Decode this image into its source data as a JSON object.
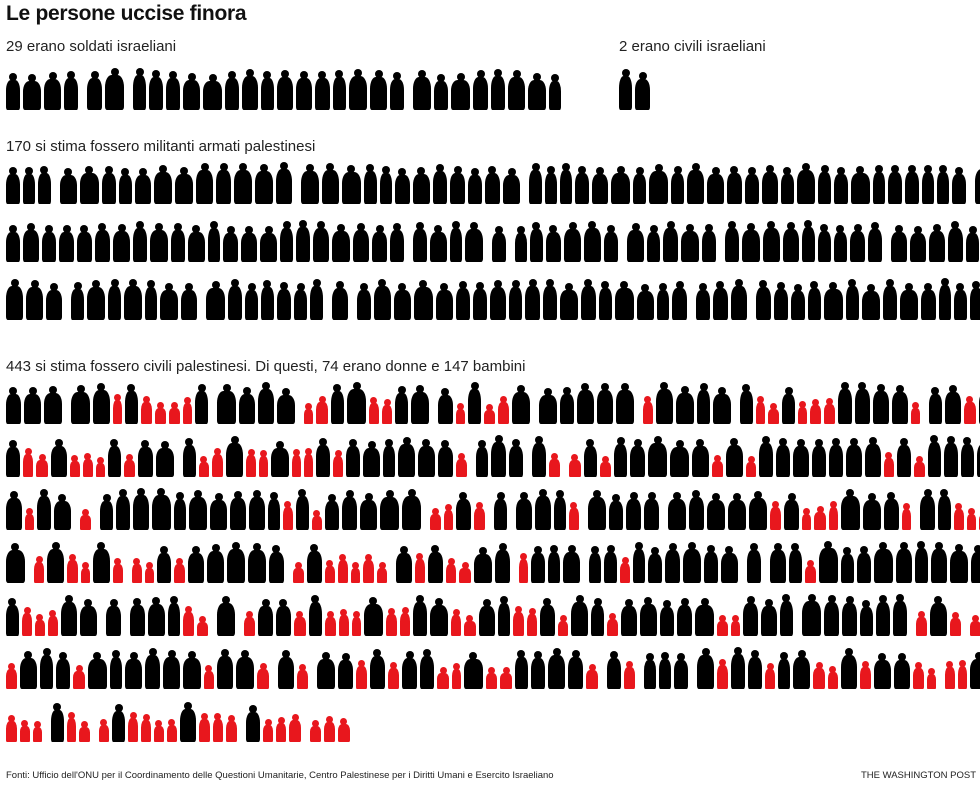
{
  "title": "Le persone uccise finora",
  "groups": [
    {
      "label": "29 erano soldati israeliani",
      "count": 29
    },
    {
      "label": "2 erano civili israeliani",
      "count": 2
    },
    {
      "label": "170 si stima fossero militanti armati palestinesi",
      "count": 170
    },
    {
      "label": "443 si stima fossero civili palestinesi. Di questi, 74 erano donne e 147 bambini",
      "count": 443,
      "women": 74,
      "children": 147
    }
  ],
  "colors": {
    "adult": "#000000",
    "child": "#e8171d"
  },
  "footer": {
    "sources": "Fonti: Ufficio dell'ONU per il Coordinamento delle Questioni Umanitarie, Centro Palestinese per i Diritti Umani e Esercito Israeliano",
    "credit": "THE WASHINGTON POST"
  }
}
